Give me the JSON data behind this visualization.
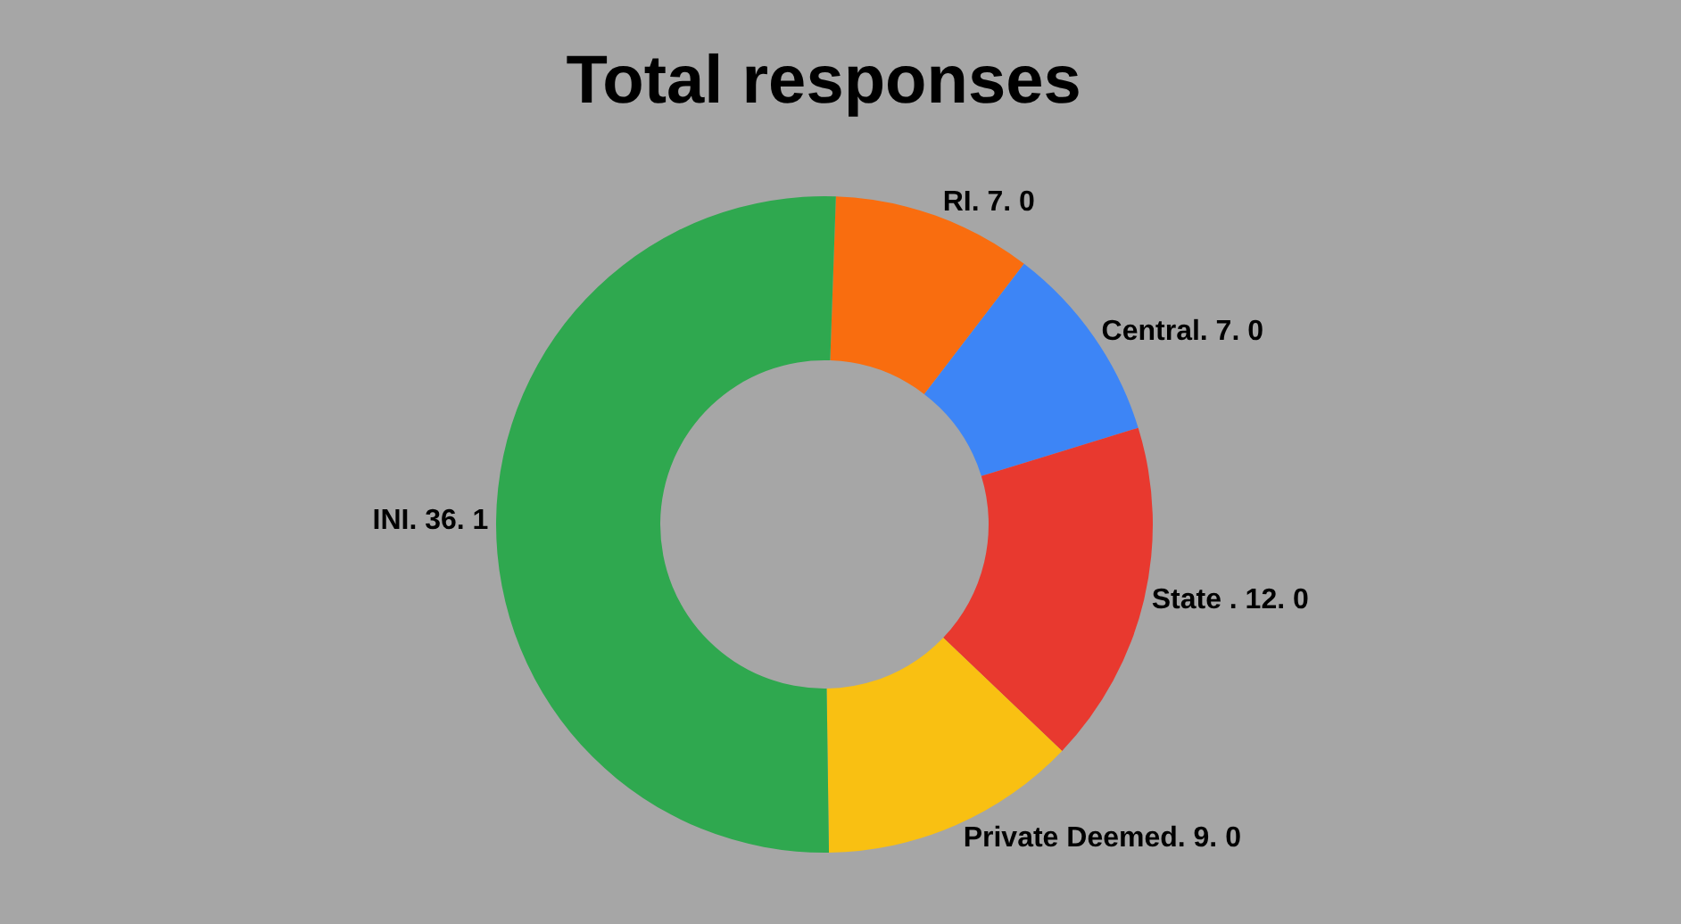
{
  "chart_data": {
    "type": "donut",
    "title": "Total responses",
    "categories": [
      "RI. 7. 0",
      "Central. 7. 0",
      "State . 12. 0",
      "Private Deemed. 9. 0",
      "INI. 36. 1"
    ],
    "values": [
      7.0,
      7.0,
      12.0,
      9.0,
      36.1
    ],
    "colors": [
      "#f96d0f",
      "#3d85f6",
      "#e8392f",
      "#f9c012",
      "#2fa84f"
    ],
    "legend": false
  }
}
